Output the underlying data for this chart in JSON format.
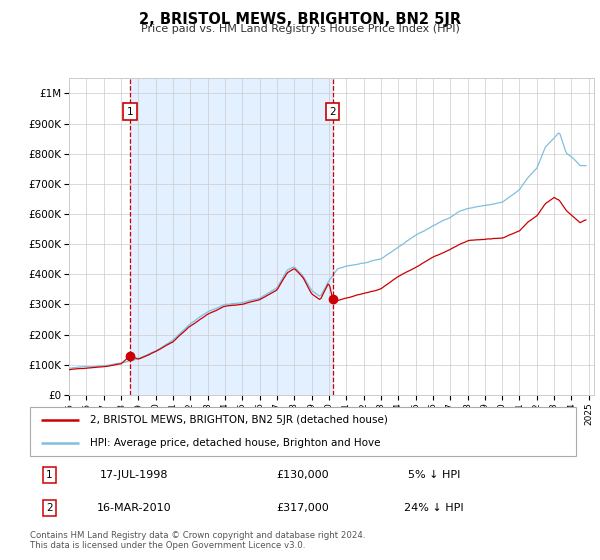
{
  "title": "2, BRISTOL MEWS, BRIGHTON, BN2 5JR",
  "subtitle": "Price paid vs. HM Land Registry's House Price Index (HPI)",
  "legend_property": "2, BRISTOL MEWS, BRIGHTON, BN2 5JR (detached house)",
  "legend_hpi": "HPI: Average price, detached house, Brighton and Hove",
  "sale1_date": "17-JUL-1998",
  "sale1_price": 130000,
  "sale1_pct": "5% ↓ HPI",
  "sale2_date": "16-MAR-2010",
  "sale2_price": 317000,
  "sale2_pct": "24% ↓ HPI",
  "sale1_year": 1998.54,
  "sale2_year": 2010.21,
  "footer": "Contains HM Land Registry data © Crown copyright and database right 2024.\nThis data is licensed under the Open Government Licence v3.0.",
  "property_color": "#cc0000",
  "hpi_color": "#7fbfdf",
  "shade_color": "#ddeeff",
  "grid_color": "#cccccc",
  "ylim_max": 1050000,
  "ylim_min": 0,
  "hpi_anchors_x": [
    1995.0,
    1996.0,
    1997.0,
    1998.0,
    1999.0,
    2000.0,
    2001.0,
    2002.0,
    2003.0,
    2004.0,
    2005.0,
    2006.0,
    2007.0,
    2007.6,
    2008.0,
    2008.5,
    2009.0,
    2009.5,
    2010.0,
    2010.5,
    2011.0,
    2012.0,
    2013.0,
    2014.0,
    2015.0,
    2016.0,
    2017.0,
    2017.5,
    2018.0,
    2019.0,
    2020.0,
    2021.0,
    2021.5,
    2022.0,
    2022.5,
    2023.0,
    2023.3,
    2023.7,
    2024.0,
    2024.5,
    2024.83
  ],
  "hpi_anchors_y": [
    88000,
    92000,
    98000,
    108000,
    125000,
    150000,
    185000,
    240000,
    280000,
    305000,
    310000,
    325000,
    360000,
    420000,
    430000,
    400000,
    350000,
    330000,
    380000,
    420000,
    430000,
    440000,
    450000,
    490000,
    530000,
    560000,
    590000,
    610000,
    620000,
    630000,
    640000,
    680000,
    720000,
    750000,
    820000,
    850000,
    870000,
    800000,
    790000,
    760000,
    760000
  ],
  "prop_anchors_x": [
    1995.0,
    1996.0,
    1997.0,
    1998.0,
    1998.54,
    1999.0,
    2000.0,
    2001.0,
    2002.0,
    2003.0,
    2004.0,
    2005.0,
    2006.0,
    2007.0,
    2007.6,
    2008.0,
    2008.5,
    2009.0,
    2009.5,
    2010.0,
    2010.21,
    2010.5,
    2011.0,
    2012.0,
    2013.0,
    2014.0,
    2015.0,
    2016.0,
    2017.0,
    2017.5,
    2018.0,
    2019.0,
    2020.0,
    2021.0,
    2021.5,
    2022.0,
    2022.5,
    2023.0,
    2023.3,
    2023.7,
    2024.0,
    2024.5,
    2024.83
  ],
  "prop_anchors_y": [
    83000,
    87000,
    93000,
    102000,
    130000,
    118000,
    142000,
    175000,
    228000,
    266000,
    290000,
    295000,
    308000,
    342000,
    400000,
    415000,
    385000,
    330000,
    310000,
    370000,
    317000,
    310000,
    320000,
    335000,
    350000,
    390000,
    420000,
    455000,
    480000,
    495000,
    505000,
    510000,
    515000,
    540000,
    570000,
    590000,
    630000,
    650000,
    640000,
    605000,
    590000,
    565000,
    575000
  ]
}
